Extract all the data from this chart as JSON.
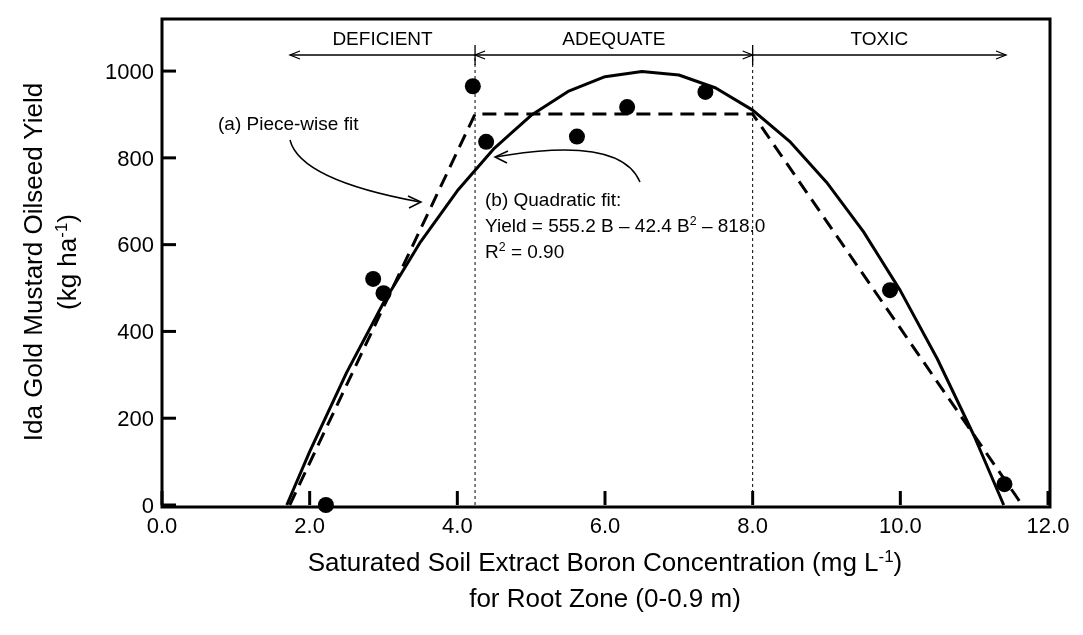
{
  "chart_data": {
    "type": "scatter",
    "xlabel": "Saturated Soil Extract Boron Concentration (mg L$^{-1}$)\nfor Root Zone (0-0.9 m)",
    "ylabel": "Ida Gold Mustard Oilseed Yield\n(kg ha$^{-1}$)",
    "xlim": [
      0,
      12
    ],
    "ylim": [
      0,
      1120
    ],
    "xticks": [
      {
        "value": 0,
        "label": "0.0"
      },
      {
        "value": 2,
        "label": "2.0"
      },
      {
        "value": 4,
        "label": "4.0"
      },
      {
        "value": 6,
        "label": "6.0"
      },
      {
        "value": 8,
        "label": "8.0"
      },
      {
        "value": 10,
        "label": "10.0"
      },
      {
        "value": 12,
        "label": "12.0"
      }
    ],
    "yticks": [
      0,
      200,
      400,
      600,
      800,
      1000
    ],
    "grid": false,
    "series": [
      {
        "color": "#000000",
        "marker": "circle",
        "x": [
          2.22,
          2.86,
          3.0,
          4.21,
          4.39,
          5.62,
          6.3,
          7.36,
          9.86,
          11.41
        ],
        "values": [
          0,
          521,
          488,
          965,
          837,
          849,
          917,
          952,
          495,
          48
        ]
      },
      {
        "type": "line",
        "color": "#000000",
        "line_style": "dashed",
        "marker": "none",
        "x": [
          1.73,
          4.24,
          8.0,
          11.65
        ],
        "values": [
          0,
          901,
          901,
          0
        ]
      },
      {
        "type": "line",
        "color": "#000000",
        "line_style": "solid",
        "marker": "none",
        "x": [
          1.69,
          2,
          2.5,
          3,
          3.5,
          4,
          4.5,
          5,
          5.5,
          6,
          6.5,
          7,
          7.5,
          8,
          8.5,
          9,
          9.5,
          10,
          10.5,
          11,
          11.4
        ],
        "values": [
          0,
          123,
          305,
          466,
          606,
          724,
          822,
          898,
          953,
          987,
          999,
          991,
          961,
          910,
          838,
          744,
          630,
          494,
          337,
          159,
          0
        ]
      }
    ],
    "ref_lines": [
      {
        "axis": "x",
        "value": 4.24,
        "label": null,
        "line_style": "dotted"
      },
      {
        "axis": "x",
        "value": 8.0,
        "label": null,
        "line_style": "dotted"
      }
    ],
    "annotations": [
      "DEFICIENT",
      "ADEQUATE",
      "TOXIC",
      "(a) Piece-wise fit",
      "(b) Quadratic fit:\nYield = 555.2 B – 42.4 B$^{2}$ – 818.0\nR$^{2}$ = 0.90"
    ]
  }
}
